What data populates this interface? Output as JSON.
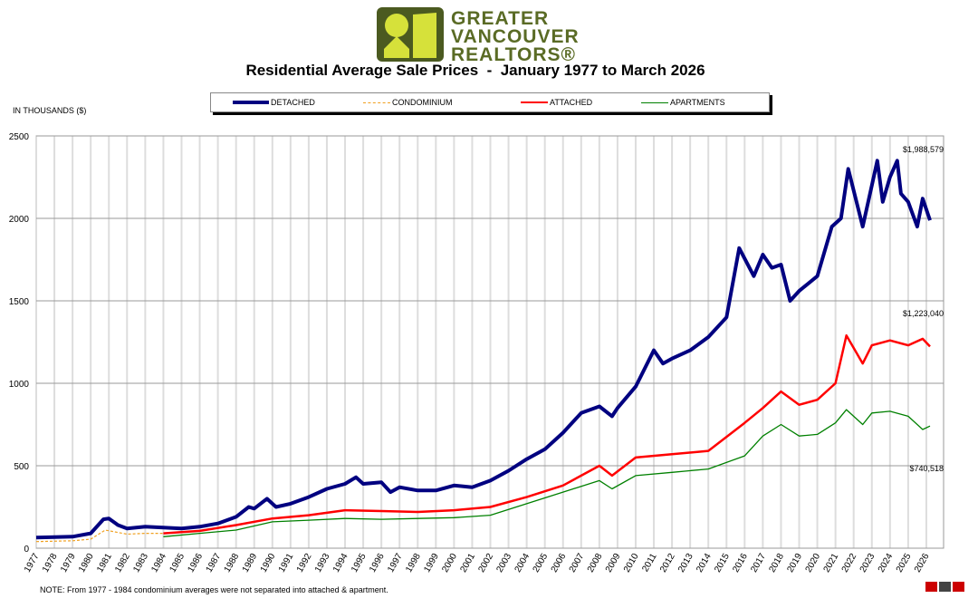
{
  "logo": {
    "lines": [
      "GREATER",
      "VANCOUVER",
      "REALTORS®"
    ]
  },
  "chart_data": {
    "type": "line",
    "title": "Residential Average Sale Prices  -  January 1977 to March 2026",
    "ylabel": "IN THOUSANDS ($)",
    "ylim": [
      0,
      2500
    ],
    "yticks": [
      0,
      500,
      1000,
      1500,
      2000,
      2500
    ],
    "xlim": [
      1977,
      2026
    ],
    "xticks": [
      "1977",
      "1978",
      "1979",
      "1980",
      "1981",
      "1982",
      "1983",
      "1984",
      "1985",
      "1986",
      "1987",
      "1988",
      "1989",
      "1990",
      "1991",
      "1992",
      "1993",
      "1994",
      "1995",
      "1996",
      "1997",
      "1998",
      "1999",
      "2000",
      "2001",
      "2002",
      "2003",
      "2004",
      "2005",
      "2006",
      "2007",
      "2008",
      "2009",
      "2010",
      "2011",
      "2012",
      "2013",
      "2014",
      "2015",
      "2016",
      "2017",
      "2018",
      "2019",
      "2020",
      "2021",
      "2022",
      "2023",
      "2024",
      "2025",
      "2026"
    ],
    "grid": true,
    "legend_position": "top",
    "series": [
      {
        "name": "DETACHED",
        "color": "#000080",
        "dash": false,
        "x": [
          1977,
          1979,
          1980,
          1980.7,
          1981,
          1981.5,
          1982,
          1983,
          1984,
          1985,
          1986,
          1987,
          1988,
          1988.7,
          1989,
          1989.7,
          1990.2,
          1991,
          1992,
          1993,
          1994,
          1994.6,
          1995,
          1996,
          1996.5,
          1997,
          1998,
          1999,
          2000,
          2001,
          2002,
          2003,
          2004,
          2005,
          2006,
          2007,
          2008,
          2008.7,
          2009,
          2010,
          2011,
          2011.5,
          2012,
          2013,
          2014,
          2015,
          2015.7,
          2016.5,
          2017,
          2017.5,
          2018,
          2018.5,
          2019,
          2020,
          2020.8,
          2021.3,
          2021.7,
          2022.5,
          2023,
          2023.3,
          2023.6,
          2024,
          2024.4,
          2024.6,
          2025,
          2025.5,
          2025.8,
          2026.2
        ],
        "y": [
          65,
          70,
          90,
          175,
          180,
          140,
          120,
          130,
          125,
          120,
          130,
          150,
          190,
          250,
          240,
          300,
          250,
          270,
          310,
          360,
          390,
          430,
          390,
          400,
          340,
          370,
          350,
          350,
          380,
          370,
          410,
          470,
          540,
          600,
          700,
          820,
          860,
          800,
          850,
          980,
          1200,
          1120,
          1150,
          1200,
          1280,
          1400,
          1820,
          1650,
          1780,
          1700,
          1720,
          1500,
          1560,
          1650,
          1950,
          2000,
          2300,
          1950,
          2200,
          2350,
          2100,
          2250,
          2350,
          2150,
          2100,
          1950,
          2120,
          1988.579
        ]
      },
      {
        "name": "CONDOMINIUM",
        "color": "#f0a020",
        "dash": true,
        "x": [
          1977,
          1979,
          1980,
          1980.8,
          1982,
          1983,
          1984
        ],
        "y": [
          40,
          45,
          55,
          110,
          85,
          90,
          90
        ]
      },
      {
        "name": "ATTACHED",
        "color": "#ff0000",
        "dash": false,
        "x": [
          1984,
          1986,
          1988,
          1990,
          1992,
          1994,
          1996,
          1998,
          2000,
          2002,
          2004,
          2006,
          2008,
          2008.7,
          2010,
          2012,
          2014,
          2016,
          2017,
          2018,
          2019,
          2020,
          2021,
          2021.6,
          2022.5,
          2023,
          2024,
          2025,
          2025.8,
          2026.2
        ],
        "y": [
          90,
          105,
          140,
          180,
          200,
          230,
          225,
          220,
          230,
          250,
          310,
          380,
          500,
          440,
          550,
          570,
          590,
          760,
          850,
          950,
          870,
          900,
          1000,
          1290,
          1120,
          1230,
          1260,
          1230,
          1270,
          1223.04
        ]
      },
      {
        "name": "APARTMENTS",
        "color": "#008000",
        "dash": false,
        "x": [
          1984,
          1986,
          1988,
          1990,
          1992,
          1994,
          1996,
          1998,
          2000,
          2002,
          2004,
          2006,
          2008,
          2008.7,
          2010,
          2012,
          2014,
          2016,
          2017,
          2018,
          2019,
          2020,
          2021,
          2021.6,
          2022.5,
          2023,
          2024,
          2025,
          2025.8,
          2026.2
        ],
        "y": [
          70,
          90,
          110,
          160,
          170,
          180,
          175,
          180,
          185,
          200,
          270,
          340,
          410,
          360,
          440,
          460,
          480,
          560,
          680,
          750,
          680,
          690,
          760,
          840,
          750,
          820,
          830,
          800,
          720,
          740.518
        ]
      }
    ],
    "annotations": [
      "$1,988,579",
      "$1,223,040",
      "$740,518"
    ],
    "note": "NOTE:  From 1977 - 1984 condominium averages were not separated into attached & apartment."
  }
}
